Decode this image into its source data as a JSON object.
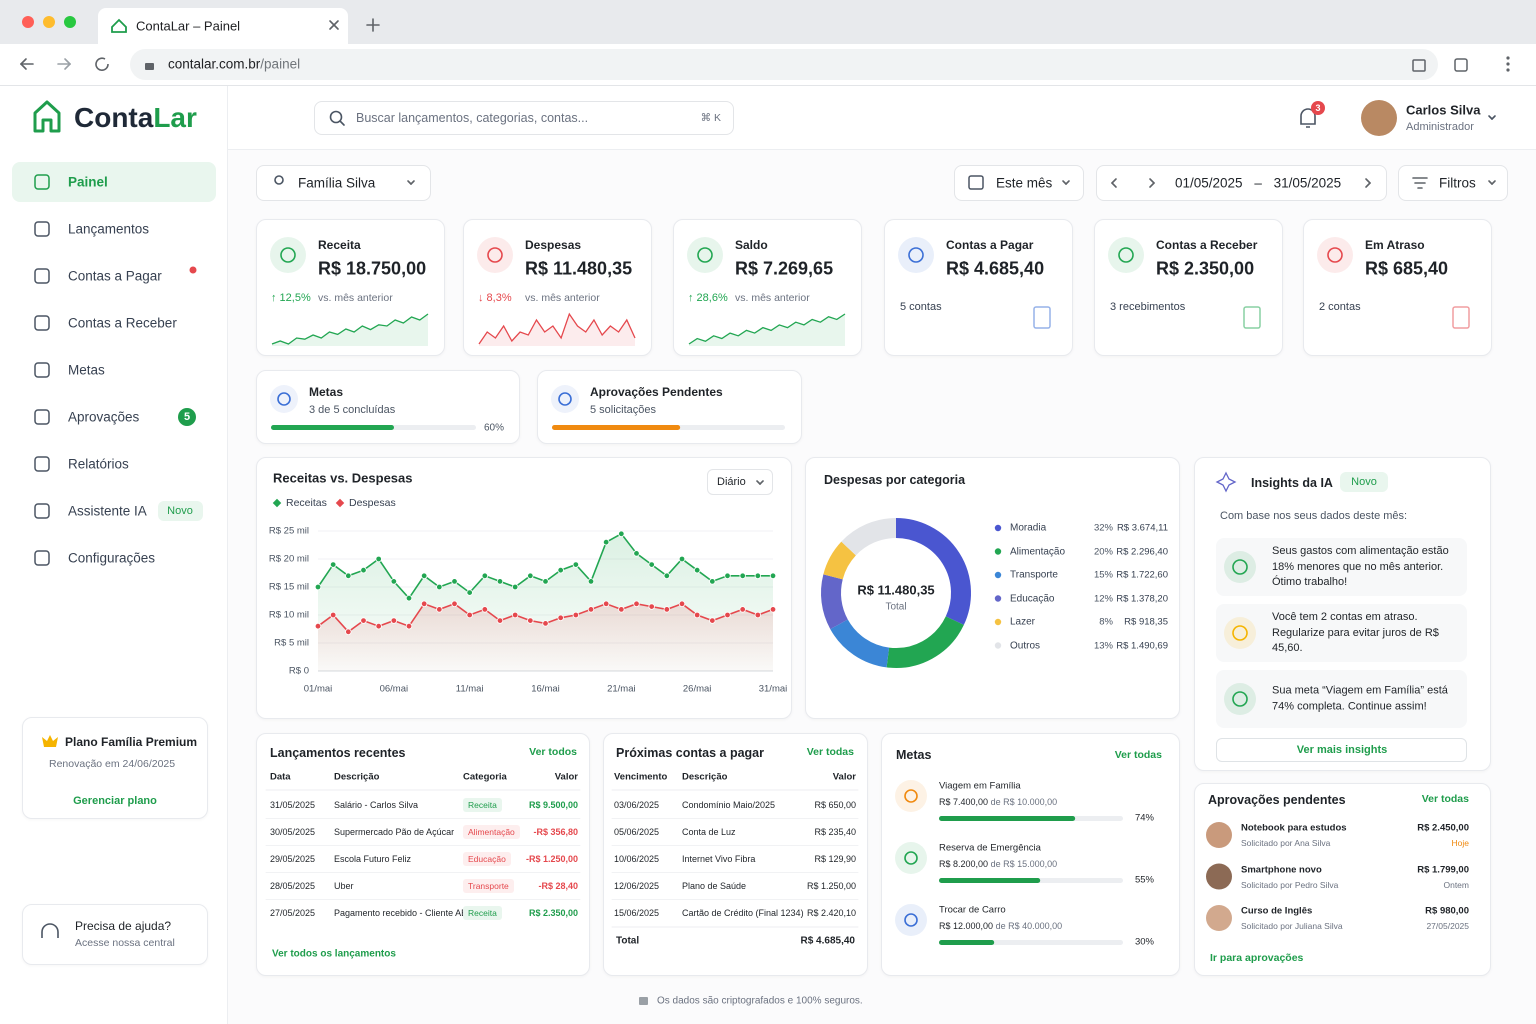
{
  "browser": {
    "tab_title": "ContaLar – Painel",
    "url_host": "contalar.com.br",
    "url_path": "/painel"
  },
  "sidebar": {
    "brand_a": "Conta",
    "brand_b": "Lar",
    "nav": [
      {
        "label": "Painel"
      },
      {
        "label": "Lançamentos"
      },
      {
        "label": "Contas a Pagar",
        "alert": true
      },
      {
        "label": "Contas a Receber"
      },
      {
        "label": "Metas"
      },
      {
        "label": "Aprovações",
        "badge": "5"
      },
      {
        "label": "Relatórios"
      },
      {
        "label": "Assistente IA",
        "badge": "Novo"
      },
      {
        "label": "Configurações"
      }
    ],
    "plan": {
      "title": "Plano Família Premium",
      "renewal": "Renovação em 24/06/2025",
      "action": "Gerenciar plano"
    },
    "help": {
      "title": "Precisa de ajuda?",
      "subtitle": "Acesse nossa central"
    }
  },
  "header": {
    "search_placeholder": "Buscar lançamentos, categorias, contas...",
    "shortcut": "⌘ K",
    "notifications": "3",
    "user_name": "Carlos Silva",
    "user_role": "Administrador"
  },
  "toolbar": {
    "family": "Família Silva",
    "period": "Este mês",
    "date_from": "01/05/2025",
    "date_sep": "–",
    "date_to": "31/05/2025",
    "filters": "Filtros"
  },
  "kpis": [
    {
      "label": "Receita",
      "value": "R$ 18.750,00",
      "change": "↑ 12,5%",
      "change_text": "vs. mês anterior",
      "color": "#22a652",
      "trend": [
        3,
        3.5,
        3,
        4,
        3.8,
        4.5,
        4,
        5,
        4.6,
        5.5,
        5,
        6,
        5.4,
        6.2,
        6,
        7,
        6.5,
        7.5,
        7,
        8
      ]
    },
    {
      "label": "Despesas",
      "value": "R$ 11.480,35",
      "change": "↓ 8,3%",
      "change_text": "vs. mês anterior",
      "color": "#e5484d",
      "trend": [
        3,
        5,
        4,
        6,
        3.5,
        5,
        4.5,
        7,
        5,
        6,
        4,
        8,
        6,
        5,
        7,
        4.5,
        6,
        5,
        7,
        4
      ]
    },
    {
      "label": "Saldo",
      "value": "R$ 7.269,65",
      "change": "↑ 28,6%",
      "change_text": "vs. mês anterior",
      "color": "#22a652",
      "trend": [
        2,
        3,
        2.5,
        3.5,
        3,
        4,
        3.5,
        4.5,
        4,
        5,
        4.5,
        5.5,
        5,
        6,
        5.5,
        6.5,
        6,
        7,
        6.5,
        7.5
      ]
    },
    {
      "label": "Contas a Pagar",
      "value": "R$ 4.685,40",
      "note": "5 contas",
      "color": "#3b6fd6"
    },
    {
      "label": "Contas a Receber",
      "value": "R$ 2.350,00",
      "note": "3 recebimentos",
      "color": "#22a652"
    },
    {
      "label": "Em Atraso",
      "value": "R$ 685,40",
      "note": "2 contas",
      "color": "#e5484d"
    }
  ],
  "summary": [
    {
      "title": "Metas",
      "subtitle": "3 de 5 concluídas",
      "progress": 60,
      "progress_label": "60%",
      "color": "#22a652"
    },
    {
      "title": "Aprovações Pendentes",
      "subtitle": "5 solicitações",
      "progress": 55,
      "color": "#f08a10"
    }
  ],
  "chart_data": [
    {
      "type": "line",
      "title": "Receitas vs. Despesas",
      "control": "Diário",
      "categories": [
        "01/mai",
        null,
        null,
        null,
        null,
        "06/mai",
        null,
        null,
        null,
        null,
        "11/mai",
        null,
        null,
        null,
        null,
        "16/mai",
        null,
        null,
        null,
        null,
        "21/mai",
        null,
        null,
        null,
        null,
        "26/mai",
        null,
        null,
        null,
        null,
        "31/mai"
      ],
      "series": [
        {
          "name": "Receitas",
          "color": "#22a652",
          "values": [
            15000,
            19000,
            17000,
            18000,
            20000,
            16000,
            13000,
            17000,
            15000,
            16000,
            14000,
            17000,
            16000,
            15000,
            17000,
            16000,
            18000,
            19000,
            16000,
            23000,
            24500,
            21000,
            19000,
            17000,
            20000,
            18000,
            16000,
            17000,
            17000,
            17000,
            17000
          ]
        },
        {
          "name": "Despesas",
          "color": "#e5484d",
          "values": [
            8000,
            10000,
            7000,
            9000,
            8000,
            9000,
            8000,
            12000,
            11000,
            12000,
            10000,
            11000,
            9000,
            10000,
            9000,
            8500,
            9500,
            10000,
            11000,
            12000,
            11000,
            12000,
            11500,
            11000,
            12000,
            10000,
            9000,
            10000,
            11000,
            10000,
            11000
          ]
        }
      ],
      "ylim": [
        0,
        25000
      ],
      "yticks": [
        {
          "value": 0,
          "label": "R$ 0"
        },
        {
          "value": 5000,
          "label": "R$ 5 mil"
        },
        {
          "value": 10000,
          "label": "R$ 10 mil"
        },
        {
          "value": 15000,
          "label": "R$ 15 mil"
        },
        {
          "value": 20000,
          "label": "R$ 20 mil"
        },
        {
          "value": 25000,
          "label": "R$ 25 mil"
        }
      ],
      "grid": true
    },
    {
      "type": "donut",
      "title": "Despesas por categoria",
      "center_value": "R$ 11.480,35",
      "center_label": "Total",
      "categories": [
        "Moradia",
        "Alimentação",
        "Transporte",
        "Educação",
        "Lazer",
        "Outros"
      ],
      "values": [
        32,
        20,
        15,
        12,
        8,
        13
      ],
      "value_labels": [
        "32%",
        "20%",
        "15%",
        "12%",
        "8%",
        "13%"
      ],
      "amounts": [
        "R$ 3.674,11",
        "R$ 2.296,40",
        "R$ 1.722,60",
        "R$ 1.378,20",
        "R$ 918,35",
        "R$ 1.490,69"
      ],
      "colors": [
        "#4a56d0",
        "#22a652",
        "#3b86d6",
        "#6366c9",
        "#f5c242",
        "#e2e4e8"
      ]
    }
  ],
  "insights": {
    "title": "Insights da IA",
    "badge": "Novo",
    "intro": "Com base nos seus dados deste mês:",
    "items": [
      {
        "text": "Seus gastos com alimentação estão 18% menores que no mês anterior. Ótimo trabalho!",
        "color": "#22a652"
      },
      {
        "text": "Você tem 2 contas em atraso. Regularize para evitar juros de R$ 45,60.",
        "color": "#f5b400"
      },
      {
        "text": "Sua meta “Viagem em Família” está 74% completa. Continue assim!",
        "color": "#22a652"
      }
    ],
    "action": "Ver mais insights"
  },
  "recent": {
    "title": "Lançamentos recentes",
    "link": "Ver todos",
    "headers": [
      "Data",
      "Descrição",
      "Categoria",
      "Valor"
    ],
    "rows": [
      [
        "31/05/2025",
        "Salário - Carlos Silva",
        "Receita",
        "R$ 9.500,00"
      ],
      [
        "30/05/2025",
        "Supermercado Pão de Açúcar",
        "Alimentação",
        "-R$ 356,80"
      ],
      [
        "29/05/2025",
        "Escola Futuro Feliz",
        "Educação",
        "-R$ 1.250,00"
      ],
      [
        "28/05/2025",
        "Uber",
        "Transporte",
        "-R$ 28,40"
      ],
      [
        "27/05/2025",
        "Pagamento recebido - Cliente ABC",
        "Receita",
        "R$ 2.350,00"
      ]
    ],
    "footer": "Ver todos os lançamentos"
  },
  "bills": {
    "title": "Próximas contas a pagar",
    "link": "Ver todas",
    "headers": [
      "Vencimento",
      "Descrição",
      "Valor"
    ],
    "rows": [
      [
        "03/06/2025",
        "Condomínio Maio/2025",
        "R$ 650,00"
      ],
      [
        "05/06/2025",
        "Conta de Luz",
        "R$ 235,40"
      ],
      [
        "10/06/2025",
        "Internet Vivo Fibra",
        "R$ 129,90"
      ],
      [
        "12/06/2025",
        "Plano de Saúde",
        "R$ 1.250,00"
      ],
      [
        "15/06/2025",
        "Cartão de Crédito (Final 1234)",
        "R$ 2.420,10"
      ]
    ],
    "total_label": "Total",
    "total": "R$ 4.685,40"
  },
  "goals": {
    "title": "Metas",
    "link": "Ver todas",
    "of_word": "de",
    "items": [
      {
        "name": "Viagem em Família",
        "saved": "R$ 7.400,00",
        "target": "R$ 10.000,00",
        "progress": 74,
        "progress_label": "74%",
        "color": "#f08a10"
      },
      {
        "name": "Reserva de Emergência",
        "saved": "R$ 8.200,00",
        "target": "R$ 15.000,00",
        "progress": 55,
        "progress_label": "55%",
        "color": "#22a652"
      },
      {
        "name": "Trocar de Carro",
        "saved": "R$ 12.000,00",
        "target": "R$ 40.000,00",
        "progress": 30,
        "progress_label": "30%",
        "color": "#3b6fd6"
      }
    ]
  },
  "approvals": {
    "title": "Aprovações pendentes",
    "link": "Ver todas",
    "items": [
      {
        "title": "Notebook para estudos",
        "requester": "Solicitado por Ana Silva",
        "amount": "R$ 2.450,00",
        "when": "Hoje"
      },
      {
        "title": "Smartphone novo",
        "requester": "Solicitado por Pedro Silva",
        "amount": "R$ 1.799,00",
        "when": "Ontem"
      },
      {
        "title": "Curso de Inglês",
        "requester": "Solicitado por Juliana Silva",
        "amount": "R$ 980,00",
        "when": "27/05/2025"
      }
    ],
    "footer": "Ir para aprovações"
  },
  "footer": {
    "note": "Os dados são criptografados e 100% seguros."
  }
}
